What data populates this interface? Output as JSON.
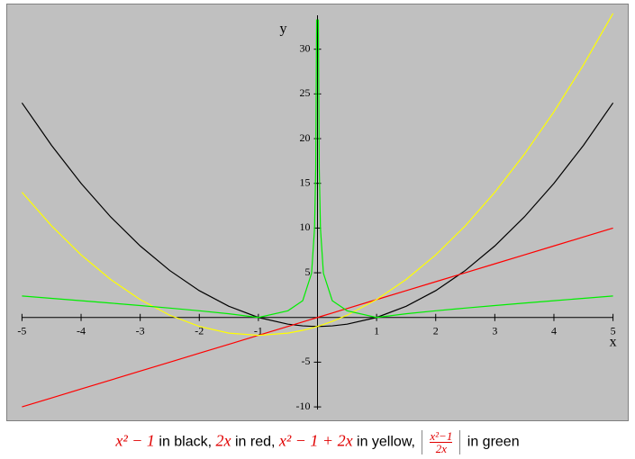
{
  "chart_data": {
    "type": "line",
    "x_label": "x",
    "y_label": "y",
    "x": [
      -5,
      -4.5,
      -4,
      -3.5,
      -3,
      -2.5,
      -2,
      -1.5,
      -1,
      -0.5,
      -0.25,
      -0.1,
      -0.05,
      -0.03,
      -0.015,
      0,
      0.015,
      0.03,
      0.05,
      0.1,
      0.25,
      0.5,
      1,
      1.5,
      2,
      2.5,
      3,
      3.5,
      4,
      4.5,
      5
    ],
    "series": [
      {
        "name": "x² − 1",
        "color": "#000000",
        "values": [
          24,
          19.25,
          15,
          11.25,
          8,
          5.25,
          3,
          1.25,
          0,
          -0.75,
          -0.9375,
          -0.99,
          -0.9975,
          -0.9991,
          -0.9998,
          -1,
          -0.9998,
          -0.9991,
          -0.9975,
          -0.99,
          -0.9375,
          -0.75,
          0,
          1.25,
          3,
          5.25,
          8,
          11.25,
          15,
          19.25,
          24
        ]
      },
      {
        "name": "2x",
        "color": "#ff0000",
        "values": [
          -10,
          -9,
          -8,
          -7,
          -6,
          -5,
          -4,
          -3,
          -2,
          -1,
          -0.5,
          -0.2,
          -0.1,
          -0.06,
          -0.03,
          0,
          0.03,
          0.06,
          0.1,
          0.2,
          0.5,
          1,
          2,
          3,
          4,
          5,
          6,
          7,
          8,
          9,
          10
        ]
      },
      {
        "name": "x² − 1 + 2x",
        "color": "#ffff00",
        "values": [
          14,
          10.25,
          7,
          4.25,
          2,
          0.25,
          -1,
          -1.75,
          -2,
          -1.75,
          -1.4375,
          -1.19,
          -1.0975,
          -1.0591,
          -1.0298,
          -1,
          -0.9698,
          -0.9391,
          -0.8975,
          -0.79,
          -0.4375,
          0.25,
          2,
          4.25,
          7,
          10.25,
          14,
          18.25,
          23,
          28.25,
          34
        ]
      },
      {
        "name": "|(x²−1)/(2x)|",
        "color": "#00ee00",
        "values": [
          2.4,
          2.139,
          1.875,
          1.607,
          1.333,
          1.05,
          0.75,
          0.417,
          0,
          0.75,
          1.875,
          4.95,
          9.975,
          16.652,
          33.326,
          null,
          33.326,
          16.652,
          9.975,
          4.95,
          1.875,
          0.75,
          0,
          0.417,
          0.75,
          1.05,
          1.333,
          1.607,
          1.875,
          2.139,
          2.4
        ]
      }
    ],
    "xlim": [
      -5.25,
      5.25
    ],
    "ylim": [
      -11.5,
      35
    ],
    "xticks": [
      -5,
      -4,
      -3,
      -2,
      -1,
      1,
      2,
      3,
      4,
      5
    ],
    "yticks": [
      -10,
      -5,
      5,
      10,
      15,
      20,
      25,
      30
    ],
    "background": "#c0c0c0",
    "caption": [
      "x² − 1",
      " in black, ",
      "2x",
      " in red, ",
      "x² − 1 + 2x",
      " in yellow, ",
      {
        "numerator": "x²−1",
        "denominator": "2x"
      },
      " in green"
    ]
  }
}
